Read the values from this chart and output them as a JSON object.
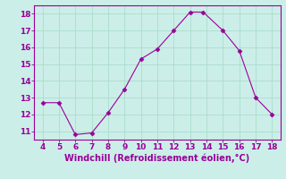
{
  "x": [
    4,
    5,
    6,
    7,
    8,
    9,
    10,
    11,
    12,
    13,
    13.8,
    15,
    16,
    17,
    18
  ],
  "y": [
    12.7,
    12.7,
    10.8,
    10.9,
    12.1,
    13.5,
    15.3,
    15.9,
    17.0,
    18.1,
    18.1,
    17.0,
    15.8,
    13.0,
    12.0
  ],
  "line_color": "#990099",
  "marker": "D",
  "marker_size": 2.5,
  "background_color": "#cceee8",
  "grid_color": "#aaddcc",
  "xlabel": "Windchill (Refroidissement éolien,°C)",
  "xlim": [
    3.5,
    18.5
  ],
  "ylim": [
    10.5,
    18.5
  ],
  "xticks": [
    4,
    5,
    6,
    7,
    8,
    9,
    10,
    11,
    12,
    13,
    14,
    15,
    16,
    17,
    18
  ],
  "yticks": [
    11,
    12,
    13,
    14,
    15,
    16,
    17,
    18
  ],
  "tick_color": "#990099",
  "label_color": "#990099",
  "tick_fontsize": 6.5,
  "xlabel_fontsize": 7
}
